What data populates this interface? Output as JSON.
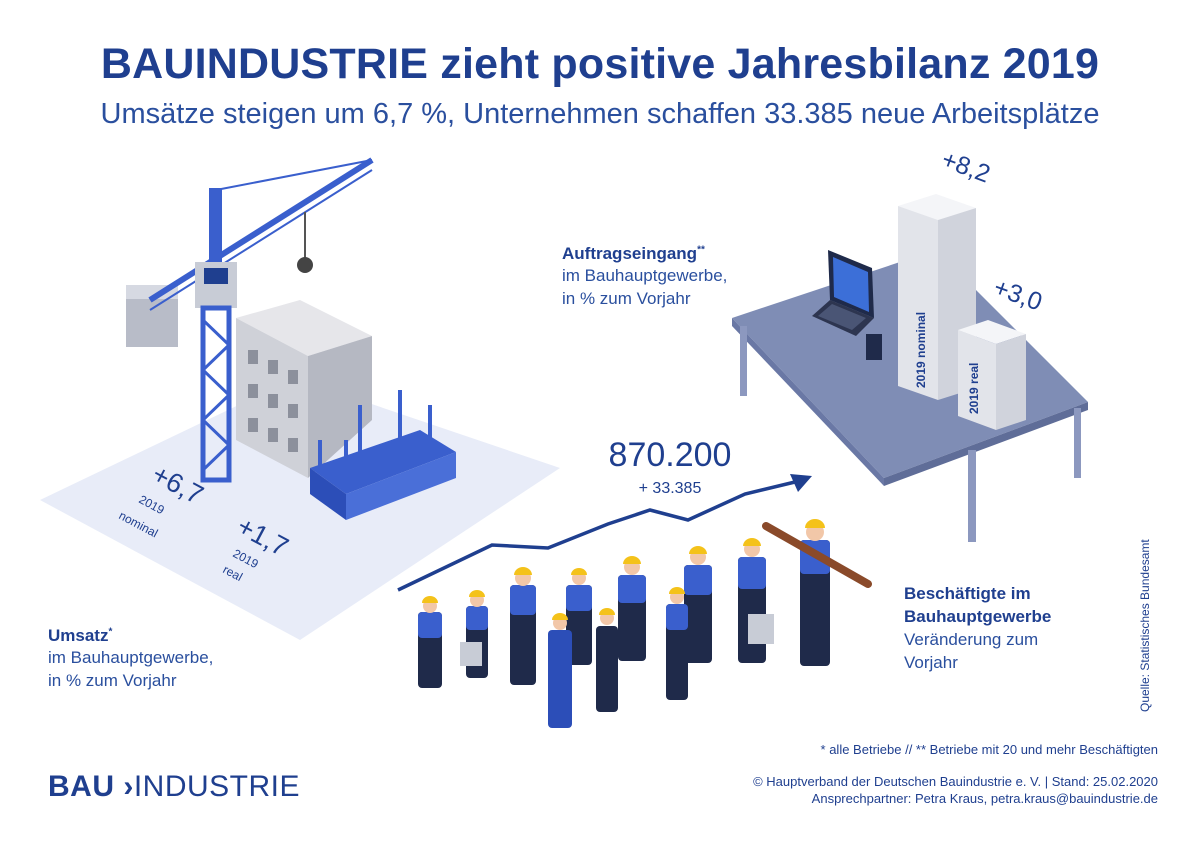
{
  "title": "BAUINDUSTRIE zieht positive Jahresbilanz 2019",
  "subtitle": "Umsätze steigen um 6,7 %, Unternehmen schaffen 33.385 neue Arbeitsplätze",
  "umsatz": {
    "heading": "Umsatz",
    "marker": "*",
    "line1": "im Bauhauptgewerbe,",
    "line2": "in % zum Vorjahr",
    "nominal_value": "+6,7",
    "nominal_year": "2019",
    "nominal_label": "nominal",
    "real_value": "+1,7",
    "real_year": "2019",
    "real_label": "real"
  },
  "auftragseingang": {
    "heading": "Auftragseingang",
    "marker": "**",
    "line1": "im Bauhauptgewerbe,",
    "line2": "in % zum Vorjahr",
    "nominal_value": "+8,2",
    "nominal_label": "2019 nominal",
    "real_value": "+3,0",
    "real_label": "2019 real"
  },
  "beschaeftigte": {
    "value": "870.200",
    "change": "+ 33.385",
    "heading1": "Beschäftigte im",
    "heading2": "Bauhauptgewerbe",
    "line1": "Veränderung zum",
    "line2": "Vorjahr"
  },
  "footnote": "* alle Betriebe // ** Betriebe mit 20 und mehr Beschäftigten",
  "copyright": "© Hauptverband der Deutschen Bauindustrie e. V. | Stand: 25.02.2020",
  "contact": "Ansprechpartner: Petra Kraus, petra.kraus@bauindustrie.de",
  "source": "Quelle: Statistisches Bundesamt",
  "logo": {
    "part1": "BAU",
    "part2": "INDUSTRIE"
  },
  "colors": {
    "brand": "#1f3f8f",
    "accent_blue": "#3a5fcd",
    "helmet": "#f4c21a",
    "desk": "#7f8db5"
  }
}
